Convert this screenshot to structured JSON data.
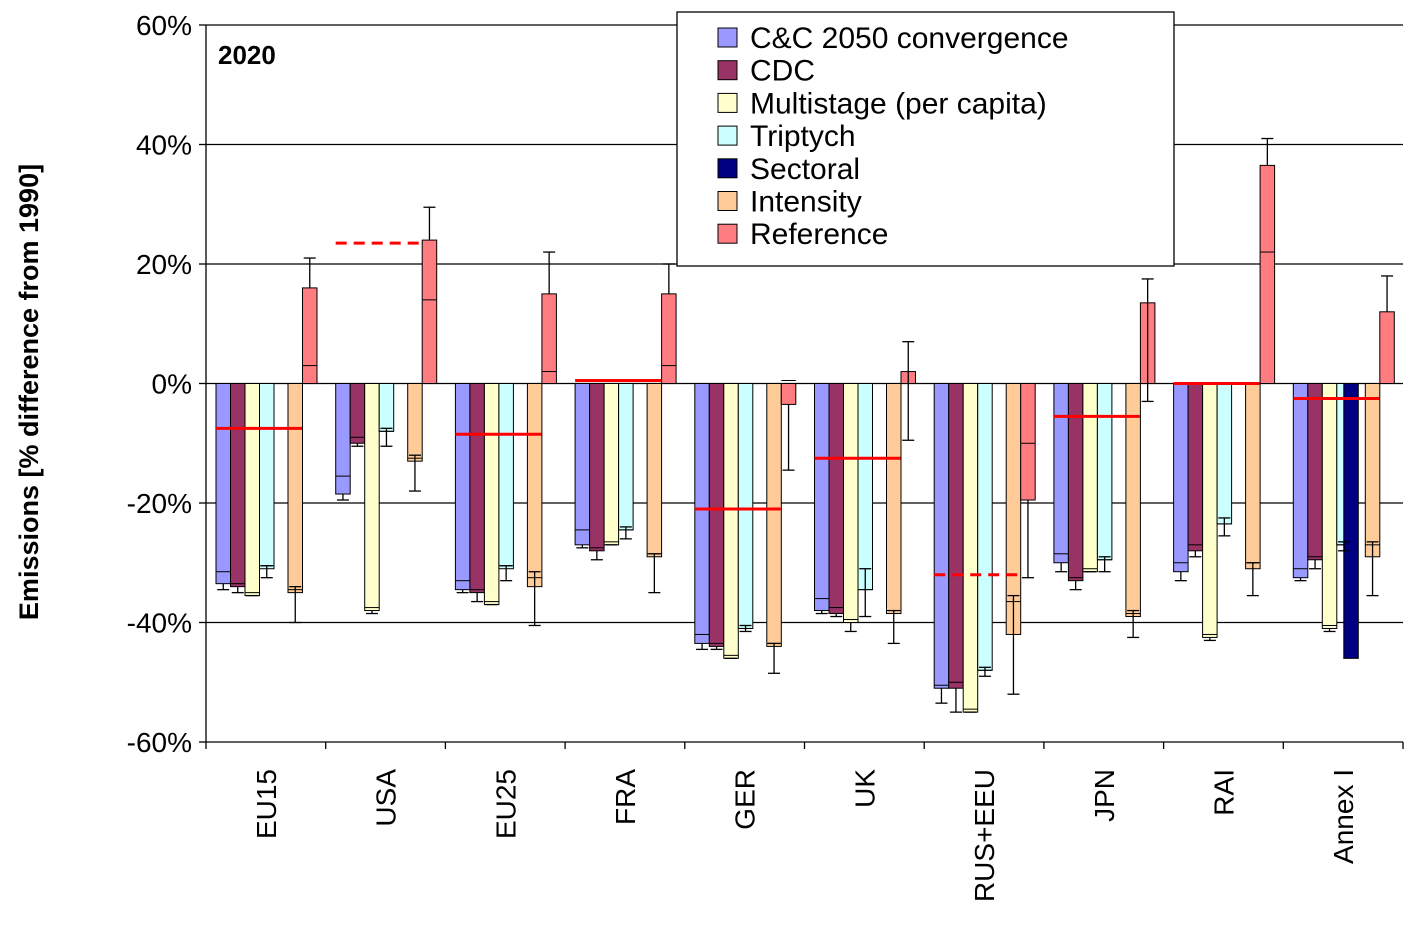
{
  "chart_data": {
    "type": "bar",
    "panel_label": "2020",
    "ylabel": "Emissions [% difference from 1990]",
    "xlabel": "",
    "ylim": [
      -60,
      60
    ],
    "yticks": [
      -60,
      -40,
      -20,
      0,
      20,
      40,
      60
    ],
    "ytick_labels": [
      "-60%",
      "-40%",
      "-20%",
      "0%",
      "20%",
      "40%",
      "60%"
    ],
    "grid": "horizontal",
    "legend_position": "top-center",
    "categories": [
      "EU15",
      "USA",
      "EU25",
      "FRA",
      "GER",
      "UK",
      "RUS+EEU",
      "JPN",
      "RAI",
      "Annex I"
    ],
    "series": [
      {
        "name": "C&C 2050 convergence",
        "color": "#9999ff",
        "values": [
          -33.5,
          -18.5,
          -34.5,
          -27,
          -43.5,
          -38,
          -51,
          -30,
          -31.5,
          -32.5
        ],
        "inner": [
          -31.5,
          -15.5,
          -33,
          -24.5,
          -42,
          -36,
          -50.5,
          -28.5,
          -30,
          -31
        ],
        "err_low": [
          -34.5,
          -19.5,
          -35,
          -27.5,
          -44.5,
          -38.5,
          -53.5,
          -31.5,
          -33,
          -33
        ]
      },
      {
        "name": "CDC",
        "color": "#993366",
        "values": [
          -34,
          -10,
          -35,
          -28,
          -44,
          -38.5,
          -51,
          -33,
          -28,
          -29.5
        ],
        "inner": [
          -33.5,
          -9,
          -34.5,
          -27.5,
          -43.5,
          -37.5,
          -50,
          -32.5,
          -27,
          -29
        ],
        "err_low": [
          -35,
          -10.5,
          -36.5,
          -29.5,
          -44.5,
          -39,
          -55,
          -34.5,
          -29,
          -31
        ]
      },
      {
        "name": "Multistage (per capita)",
        "color": "#ffffcc",
        "values": [
          -35.5,
          -38,
          -37,
          -27,
          -46,
          -40,
          -55,
          -31.5,
          -42.5,
          -41
        ],
        "inner": [
          -35,
          -37.5,
          -36.5,
          -26.5,
          -45.5,
          -39.5,
          -54.5,
          -31,
          -42,
          -40.5
        ],
        "err_low": [
          -35.5,
          -38.5,
          -37,
          -27,
          -46,
          -41.5,
          -55,
          -31.5,
          -43,
          -41.5
        ]
      },
      {
        "name": "Triptych",
        "color": "#ccffff",
        "values": [
          -31,
          -8,
          -31,
          -24.5,
          -41,
          -34.5,
          -48,
          -29.5,
          -23.5,
          -27
        ],
        "inner": [
          -30.5,
          -8,
          -30.5,
          -24.5,
          -41,
          -34.5,
          -48,
          -29.5,
          -23.5,
          -27
        ],
        "err_low": [
          -32.5,
          -10.5,
          -33,
          -26,
          -41.5,
          -39,
          -49,
          -31.5,
          -25.5,
          -28
        ],
        "err_high": [
          -30.5,
          -7.5,
          -30.5,
          -24,
          -40.5,
          -31,
          -47.5,
          -29,
          -22.5,
          -26.5
        ]
      },
      {
        "name": "Sectoral",
        "color": "#000080",
        "values": [
          null,
          null,
          null,
          null,
          null,
          null,
          null,
          null,
          null,
          -46
        ]
      },
      {
        "name": "Intensity",
        "color": "#ffcc99",
        "values": [
          -35,
          -13,
          -34,
          -29,
          -44,
          -38.5,
          -42,
          -39,
          -31,
          -29
        ],
        "inner": [
          -34.5,
          -12.5,
          -32.5,
          -28.5,
          -43.5,
          -38,
          -36.5,
          -38.5,
          -30,
          -27
        ],
        "err_low": [
          -40,
          -18,
          -40.5,
          -35,
          -48.5,
          -43.5,
          -52,
          -42.5,
          -35.5,
          -35.5
        ],
        "err_high": [
          -34,
          -12,
          -31.5,
          -28.5,
          -43.5,
          -38,
          -35.5,
          -38,
          -30,
          -26.5
        ]
      },
      {
        "name": "Reference",
        "color": "#ff7c80",
        "values": [
          16,
          24,
          15,
          15,
          -3.5,
          2,
          -19.5,
          13.5,
          36.5,
          12
        ],
        "inner": [
          3,
          14,
          2,
          3,
          0.5,
          null,
          -10,
          null,
          22,
          null
        ],
        "err_low": [
          null,
          null,
          null,
          null,
          -14.5,
          -9.5,
          -32.5,
          -3,
          null,
          null
        ],
        "err_high": [
          21,
          29.5,
          22,
          20,
          null,
          7,
          null,
          17.5,
          41,
          18
        ]
      }
    ],
    "targets": [
      {
        "category": "EU15",
        "value": -7.5,
        "style": "solid"
      },
      {
        "category": "USA",
        "value": 23.5,
        "style": "dashed"
      },
      {
        "category": "EU25",
        "value": -8.5,
        "style": "solid"
      },
      {
        "category": "FRA",
        "value": 0.5,
        "style": "solid"
      },
      {
        "category": "GER",
        "value": -21,
        "style": "solid"
      },
      {
        "category": "UK",
        "value": -12.5,
        "style": "solid"
      },
      {
        "category": "RUS+EEU",
        "value": -32,
        "style": "dashed"
      },
      {
        "category": "JPN",
        "value": -5.5,
        "style": "solid"
      },
      {
        "category": "RAI",
        "value": 0,
        "style": "solid"
      },
      {
        "category": "Annex I",
        "value": -2.5,
        "style": "solid"
      }
    ],
    "target_color": "#ff0000"
  }
}
